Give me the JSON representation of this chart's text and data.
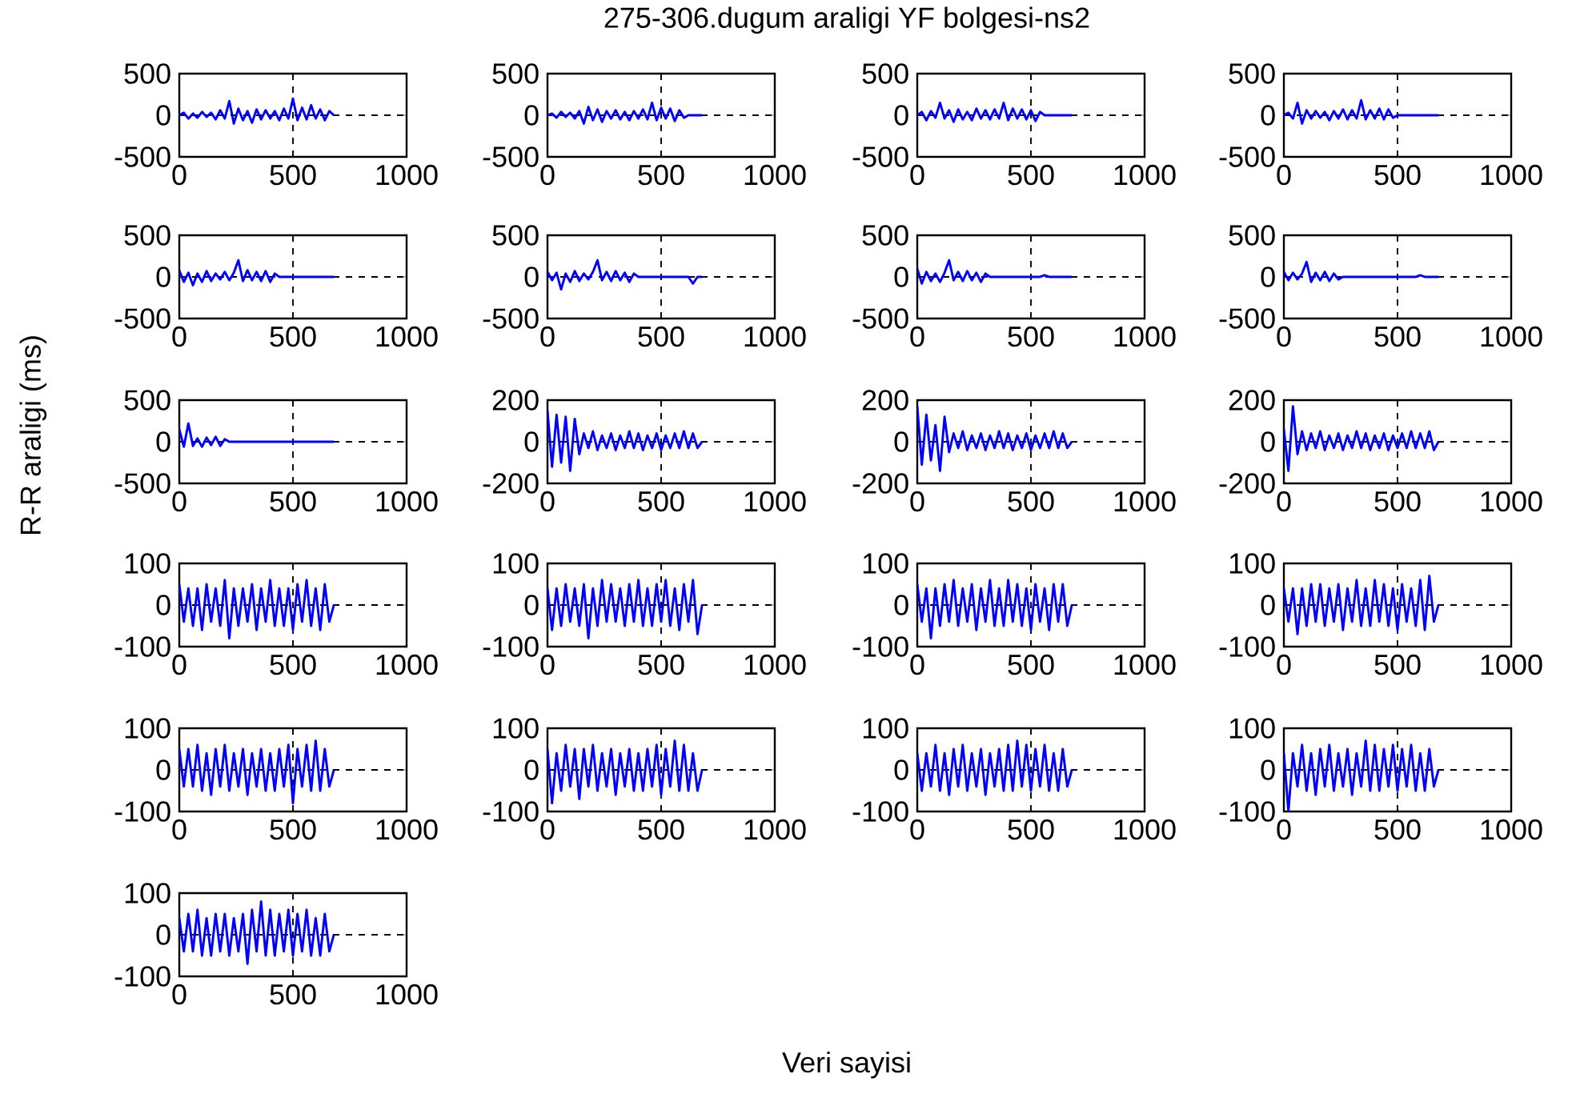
{
  "chart_data": [
    {
      "type": "line",
      "annotations": [
        "275-306.dugum araligi YF bolgesi-ns2",
        "Veri sayisi",
        "R-R araligi (ms)"
      ],
      "color": "#0000ff",
      "grid": true,
      "xlim": [
        0,
        1000
      ],
      "xticks": [
        0,
        500,
        1000
      ],
      "ylim": [
        -500,
        500
      ],
      "yticks": [
        -500,
        0,
        500
      ],
      "x": [
        0,
        20,
        40,
        60,
        80,
        100,
        120,
        140,
        160,
        180,
        200,
        220,
        240,
        260,
        280,
        300,
        320,
        340,
        360,
        380,
        400,
        420,
        440,
        460,
        480,
        500,
        520,
        540,
        560,
        580,
        600,
        620,
        640,
        660,
        680
      ],
      "values": [
        0,
        30,
        -40,
        20,
        -30,
        40,
        -20,
        30,
        -50,
        60,
        -40,
        170,
        -100,
        80,
        -60,
        50,
        -90,
        70,
        -50,
        60,
        -40,
        50,
        -60,
        80,
        -40,
        200,
        -60,
        90,
        -50,
        120,
        -40,
        70,
        -60,
        50,
        0
      ]
    },
    {
      "type": "line",
      "color": "#0000ff",
      "grid": true,
      "xlim": [
        0,
        1000
      ],
      "xticks": [
        0,
        500,
        1000
      ],
      "ylim": [
        -500,
        500
      ],
      "yticks": [
        -500,
        0,
        500
      ],
      "x": [
        0,
        20,
        40,
        60,
        80,
        100,
        120,
        140,
        160,
        180,
        200,
        220,
        240,
        260,
        280,
        300,
        320,
        340,
        360,
        380,
        400,
        420,
        440,
        460,
        480,
        500,
        520,
        540,
        560,
        580,
        600,
        620,
        640,
        660,
        680
      ],
      "values": [
        0,
        20,
        -30,
        40,
        -20,
        30,
        -40,
        50,
        -100,
        100,
        -60,
        70,
        -80,
        50,
        -40,
        60,
        -50,
        40,
        -60,
        50,
        -40,
        70,
        -50,
        150,
        -60,
        90,
        -40,
        80,
        -70,
        60,
        -30,
        0,
        0,
        0,
        0
      ]
    },
    {
      "type": "line",
      "color": "#0000ff",
      "grid": true,
      "xlim": [
        0,
        1000
      ],
      "xticks": [
        0,
        500,
        1000
      ],
      "ylim": [
        -500,
        500
      ],
      "yticks": [
        -500,
        0,
        500
      ],
      "x": [
        0,
        20,
        40,
        60,
        80,
        100,
        120,
        140,
        160,
        180,
        200,
        220,
        240,
        260,
        280,
        300,
        320,
        340,
        360,
        380,
        400,
        420,
        440,
        460,
        480,
        500,
        520,
        540,
        560,
        580,
        600,
        620,
        640,
        660,
        680
      ],
      "values": [
        0,
        40,
        -60,
        50,
        -30,
        150,
        -40,
        60,
        -80,
        70,
        -50,
        40,
        -60,
        80,
        -40,
        60,
        -50,
        70,
        -40,
        150,
        -60,
        80,
        -40,
        70,
        -50,
        60,
        -70,
        40,
        0,
        0,
        0,
        0,
        0,
        0,
        0
      ]
    },
    {
      "type": "line",
      "color": "#0000ff",
      "grid": true,
      "xlim": [
        0,
        1000
      ],
      "xticks": [
        0,
        500,
        1000
      ],
      "ylim": [
        -500,
        500
      ],
      "yticks": [
        -500,
        0,
        500
      ],
      "x": [
        0,
        20,
        40,
        60,
        80,
        100,
        120,
        140,
        160,
        180,
        200,
        220,
        240,
        260,
        280,
        300,
        320,
        340,
        360,
        380,
        400,
        420,
        440,
        460,
        480,
        500,
        520,
        540,
        560,
        580,
        600,
        620,
        640,
        660,
        680
      ],
      "values": [
        0,
        30,
        -40,
        150,
        -100,
        60,
        -40,
        50,
        -30,
        40,
        -60,
        50,
        -40,
        70,
        -50,
        60,
        -40,
        180,
        -50,
        60,
        -40,
        80,
        -50,
        70,
        -30,
        0,
        0,
        0,
        0,
        0,
        0,
        0,
        0,
        0,
        0
      ]
    },
    {
      "type": "line",
      "color": "#0000ff",
      "grid": true,
      "xlim": [
        0,
        1000
      ],
      "xticks": [
        0,
        500,
        1000
      ],
      "ylim": [
        -500,
        500
      ],
      "yticks": [
        -500,
        0,
        500
      ],
      "x": [
        0,
        20,
        40,
        60,
        80,
        100,
        120,
        140,
        160,
        180,
        200,
        220,
        240,
        260,
        280,
        300,
        320,
        340,
        360,
        380,
        400,
        420,
        440,
        460,
        480,
        500,
        520,
        540,
        560,
        580,
        600,
        620,
        640,
        660,
        680
      ],
      "values": [
        80,
        -60,
        50,
        -100,
        40,
        -60,
        70,
        -50,
        40,
        -30,
        60,
        -40,
        50,
        200,
        -50,
        80,
        -40,
        60,
        -50,
        70,
        -60,
        40,
        0,
        0,
        0,
        0,
        0,
        0,
        0,
        0,
        0,
        0,
        0,
        0,
        0
      ]
    },
    {
      "type": "line",
      "color": "#0000ff",
      "grid": true,
      "xlim": [
        0,
        1000
      ],
      "xticks": [
        0,
        500,
        1000
      ],
      "ylim": [
        -500,
        500
      ],
      "yticks": [
        -500,
        0,
        500
      ],
      "x": [
        0,
        20,
        40,
        60,
        80,
        100,
        120,
        140,
        160,
        180,
        200,
        220,
        240,
        260,
        280,
        300,
        320,
        340,
        360,
        380,
        400,
        420,
        440,
        460,
        480,
        500,
        520,
        540,
        560,
        580,
        600,
        620,
        640,
        660,
        680
      ],
      "values": [
        60,
        -40,
        50,
        -150,
        40,
        -60,
        70,
        -50,
        40,
        -30,
        60,
        200,
        -40,
        60,
        -50,
        70,
        -40,
        50,
        -60,
        40,
        0,
        0,
        0,
        0,
        0,
        0,
        0,
        0,
        0,
        0,
        0,
        0,
        -80,
        0,
        0
      ]
    },
    {
      "type": "line",
      "color": "#0000ff",
      "grid": true,
      "xlim": [
        0,
        1000
      ],
      "xticks": [
        0,
        500,
        1000
      ],
      "ylim": [
        -500,
        500
      ],
      "yticks": [
        -500,
        0,
        500
      ],
      "x": [
        0,
        20,
        40,
        60,
        80,
        100,
        120,
        140,
        160,
        180,
        200,
        220,
        240,
        260,
        280,
        300,
        320,
        340,
        360,
        380,
        400,
        420,
        440,
        460,
        480,
        500,
        520,
        540,
        560,
        580,
        600,
        620,
        640,
        660,
        680
      ],
      "values": [
        100,
        -80,
        60,
        -50,
        40,
        -60,
        50,
        200,
        -40,
        60,
        -50,
        70,
        -40,
        50,
        -60,
        40,
        0,
        0,
        0,
        0,
        0,
        0,
        0,
        0,
        0,
        0,
        0,
        0,
        20,
        0,
        0,
        0,
        0,
        0,
        0
      ]
    },
    {
      "type": "line",
      "color": "#0000ff",
      "grid": true,
      "xlim": [
        0,
        1000
      ],
      "xticks": [
        0,
        500,
        1000
      ],
      "ylim": [
        -500,
        500
      ],
      "yticks": [
        -500,
        0,
        500
      ],
      "x": [
        0,
        20,
        40,
        60,
        80,
        100,
        120,
        140,
        160,
        180,
        200,
        220,
        240,
        260,
        280,
        300,
        320,
        340,
        360,
        380,
        400,
        420,
        440,
        460,
        480,
        500,
        520,
        540,
        560,
        580,
        600,
        620,
        640,
        660,
        680
      ],
      "values": [
        60,
        -40,
        50,
        -30,
        40,
        180,
        -60,
        50,
        -40,
        60,
        -50,
        40,
        -30,
        0,
        0,
        0,
        0,
        0,
        0,
        0,
        0,
        0,
        0,
        0,
        0,
        0,
        0,
        0,
        0,
        0,
        20,
        0,
        0,
        0,
        0
      ]
    },
    {
      "type": "line",
      "color": "#0000ff",
      "grid": true,
      "xlim": [
        0,
        1000
      ],
      "xticks": [
        0,
        500,
        1000
      ],
      "ylim": [
        -500,
        500
      ],
      "yticks": [
        -500,
        0,
        500
      ],
      "x": [
        0,
        20,
        40,
        60,
        80,
        100,
        120,
        140,
        160,
        180,
        200,
        220,
        240,
        260,
        280,
        300,
        320,
        340,
        360,
        380,
        400,
        420,
        440,
        460,
        480,
        500,
        520,
        540,
        560,
        580,
        600,
        620,
        640,
        660,
        680
      ],
      "values": [
        150,
        -60,
        220,
        -50,
        40,
        -60,
        50,
        -40,
        60,
        -50,
        30,
        0,
        0,
        0,
        0,
        0,
        0,
        0,
        0,
        0,
        0,
        0,
        0,
        0,
        0,
        0,
        0,
        0,
        0,
        0,
        0,
        0,
        0,
        0,
        0
      ]
    },
    {
      "type": "line",
      "color": "#0000ff",
      "grid": true,
      "xlim": [
        0,
        1000
      ],
      "xticks": [
        0,
        500,
        1000
      ],
      "ylim": [
        -200,
        200
      ],
      "yticks": [
        -200,
        0,
        200
      ],
      "x": [
        0,
        20,
        40,
        60,
        80,
        100,
        120,
        140,
        160,
        180,
        200,
        220,
        240,
        260,
        280,
        300,
        320,
        340,
        360,
        380,
        400,
        420,
        440,
        460,
        480,
        500,
        520,
        540,
        560,
        580,
        600,
        620,
        640,
        660,
        680
      ],
      "values": [
        150,
        -120,
        130,
        -100,
        120,
        -140,
        110,
        -60,
        40,
        -30,
        50,
        -40,
        30,
        -30,
        40,
        -40,
        30,
        -30,
        50,
        -30,
        40,
        -40,
        30,
        -30,
        40,
        -40,
        30,
        -30,
        40,
        -30,
        50,
        -30,
        40,
        -30,
        0
      ]
    },
    {
      "type": "line",
      "color": "#0000ff",
      "grid": true,
      "xlim": [
        0,
        1000
      ],
      "xticks": [
        0,
        500,
        1000
      ],
      "ylim": [
        -200,
        200
      ],
      "yticks": [
        -200,
        0,
        200
      ],
      "x": [
        0,
        20,
        40,
        60,
        80,
        100,
        120,
        140,
        160,
        180,
        200,
        220,
        240,
        260,
        280,
        300,
        320,
        340,
        360,
        380,
        400,
        420,
        440,
        460,
        480,
        500,
        520,
        540,
        560,
        580,
        600,
        620,
        640,
        660,
        680
      ],
      "values": [
        170,
        -110,
        130,
        -90,
        80,
        -140,
        120,
        -50,
        40,
        -30,
        50,
        -40,
        30,
        -30,
        40,
        -40,
        30,
        -30,
        50,
        -30,
        40,
        -40,
        30,
        -30,
        40,
        -40,
        30,
        -30,
        40,
        -30,
        50,
        -30,
        40,
        -30,
        0
      ]
    },
    {
      "type": "line",
      "color": "#0000ff",
      "grid": true,
      "xlim": [
        0,
        1000
      ],
      "xticks": [
        0,
        500,
        1000
      ],
      "ylim": [
        -200,
        200
      ],
      "yticks": [
        -200,
        0,
        200
      ],
      "x": [
        0,
        20,
        40,
        60,
        80,
        100,
        120,
        140,
        160,
        180,
        200,
        220,
        240,
        260,
        280,
        300,
        320,
        340,
        360,
        380,
        400,
        420,
        440,
        460,
        480,
        500,
        520,
        540,
        560,
        580,
        600,
        620,
        640,
        660,
        680
      ],
      "values": [
        60,
        -140,
        170,
        -60,
        50,
        -40,
        40,
        -30,
        50,
        -40,
        30,
        -30,
        40,
        -40,
        30,
        -30,
        50,
        -30,
        40,
        -40,
        30,
        -30,
        40,
        -40,
        30,
        -30,
        40,
        -30,
        50,
        -30,
        40,
        -30,
        50,
        -40,
        0
      ]
    },
    {
      "type": "line",
      "color": "#0000ff",
      "grid": true,
      "xlim": [
        0,
        1000
      ],
      "xticks": [
        0,
        500,
        1000
      ],
      "ylim": [
        -100,
        100
      ],
      "yticks": [
        -100,
        0,
        100
      ],
      "x": [
        0,
        20,
        40,
        60,
        80,
        100,
        120,
        140,
        160,
        180,
        200,
        220,
        240,
        260,
        280,
        300,
        320,
        340,
        360,
        380,
        400,
        420,
        440,
        460,
        480,
        500,
        520,
        540,
        560,
        580,
        600,
        620,
        640,
        660,
        680
      ],
      "values": [
        50,
        -40,
        40,
        -50,
        40,
        -60,
        50,
        -40,
        40,
        -50,
        60,
        -80,
        40,
        -50,
        40,
        -40,
        50,
        -60,
        40,
        -40,
        60,
        -50,
        40,
        -50,
        40,
        -60,
        50,
        -40,
        60,
        -50,
        40,
        -60,
        50,
        -40,
        0
      ]
    },
    {
      "type": "line",
      "color": "#0000ff",
      "grid": true,
      "xlim": [
        0,
        1000
      ],
      "xticks": [
        0,
        500,
        1000
      ],
      "ylim": [
        -100,
        100
      ],
      "yticks": [
        -100,
        0,
        100
      ],
      "x": [
        0,
        20,
        40,
        60,
        80,
        100,
        120,
        140,
        160,
        180,
        200,
        220,
        240,
        260,
        280,
        300,
        320,
        340,
        360,
        380,
        400,
        420,
        440,
        460,
        480,
        500,
        520,
        540,
        560,
        580,
        600,
        620,
        640,
        660,
        680
      ],
      "values": [
        40,
        -60,
        40,
        -50,
        50,
        -40,
        40,
        -50,
        50,
        -80,
        40,
        -50,
        60,
        -40,
        50,
        -40,
        40,
        -50,
        50,
        -40,
        60,
        -50,
        40,
        -50,
        50,
        -40,
        60,
        -50,
        40,
        -60,
        50,
        -40,
        60,
        -70,
        0
      ]
    },
    {
      "type": "line",
      "color": "#0000ff",
      "grid": true,
      "xlim": [
        0,
        1000
      ],
      "xticks": [
        0,
        500,
        1000
      ],
      "ylim": [
        -100,
        100
      ],
      "yticks": [
        -100,
        0,
        100
      ],
      "x": [
        0,
        20,
        40,
        60,
        80,
        100,
        120,
        140,
        160,
        180,
        200,
        220,
        240,
        260,
        280,
        300,
        320,
        340,
        360,
        380,
        400,
        420,
        440,
        460,
        480,
        500,
        520,
        540,
        560,
        580,
        600,
        620,
        640,
        660,
        680
      ],
      "values": [
        50,
        -40,
        40,
        -80,
        40,
        -50,
        50,
        -40,
        60,
        -50,
        40,
        -40,
        50,
        -60,
        40,
        -40,
        60,
        -50,
        40,
        -50,
        60,
        -40,
        50,
        -50,
        40,
        -60,
        50,
        -40,
        40,
        -60,
        50,
        -40,
        50,
        -50,
        0
      ]
    },
    {
      "type": "line",
      "color": "#0000ff",
      "grid": true,
      "xlim": [
        0,
        1000
      ],
      "xticks": [
        0,
        500,
        1000
      ],
      "ylim": [
        -100,
        100
      ],
      "yticks": [
        -100,
        0,
        100
      ],
      "x": [
        0,
        20,
        40,
        60,
        80,
        100,
        120,
        140,
        160,
        180,
        200,
        220,
        240,
        260,
        280,
        300,
        320,
        340,
        360,
        380,
        400,
        420,
        440,
        460,
        480,
        500,
        520,
        540,
        560,
        580,
        600,
        620,
        640,
        660,
        680
      ],
      "values": [
        40,
        -40,
        40,
        -70,
        40,
        -50,
        50,
        -40,
        50,
        -50,
        40,
        -40,
        50,
        -60,
        40,
        -40,
        60,
        -50,
        40,
        -50,
        60,
        -40,
        50,
        -50,
        40,
        -60,
        50,
        -40,
        40,
        -50,
        60,
        -60,
        70,
        -40,
        0
      ]
    },
    {
      "type": "line",
      "color": "#0000ff",
      "grid": true,
      "xlim": [
        0,
        1000
      ],
      "xticks": [
        0,
        500,
        1000
      ],
      "ylim": [
        -100,
        100
      ],
      "yticks": [
        -100,
        0,
        100
      ],
      "x": [
        0,
        20,
        40,
        60,
        80,
        100,
        120,
        140,
        160,
        180,
        200,
        220,
        240,
        260,
        280,
        300,
        320,
        340,
        360,
        380,
        400,
        420,
        440,
        460,
        480,
        500,
        520,
        540,
        560,
        580,
        600,
        620,
        640,
        660,
        680
      ],
      "values": [
        50,
        -40,
        50,
        -40,
        60,
        -50,
        40,
        -60,
        50,
        -40,
        60,
        -50,
        40,
        -40,
        50,
        -60,
        40,
        -40,
        50,
        -50,
        40,
        -50,
        50,
        -40,
        60,
        -80,
        50,
        -40,
        60,
        -50,
        70,
        -50,
        50,
        -40,
        0
      ]
    },
    {
      "type": "line",
      "color": "#0000ff",
      "grid": true,
      "xlim": [
        0,
        1000
      ],
      "xticks": [
        0,
        500,
        1000
      ],
      "ylim": [
        -100,
        100
      ],
      "yticks": [
        -100,
        0,
        100
      ],
      "x": [
        0,
        20,
        40,
        60,
        80,
        100,
        120,
        140,
        160,
        180,
        200,
        220,
        240,
        260,
        280,
        300,
        320,
        340,
        360,
        380,
        400,
        420,
        440,
        460,
        480,
        500,
        520,
        540,
        560,
        580,
        600,
        620,
        640,
        660,
        680
      ],
      "values": [
        50,
        -80,
        40,
        -50,
        60,
        -40,
        50,
        -70,
        50,
        -40,
        60,
        -50,
        40,
        -40,
        50,
        -60,
        40,
        -40,
        50,
        -50,
        40,
        -50,
        50,
        -40,
        60,
        -60,
        50,
        -40,
        70,
        -50,
        60,
        -50,
        40,
        -50,
        0
      ]
    },
    {
      "type": "line",
      "color": "#0000ff",
      "grid": true,
      "xlim": [
        0,
        1000
      ],
      "xticks": [
        0,
        500,
        1000
      ],
      "ylim": [
        -100,
        100
      ],
      "yticks": [
        -100,
        0,
        100
      ],
      "x": [
        0,
        20,
        40,
        60,
        80,
        100,
        120,
        140,
        160,
        180,
        200,
        220,
        240,
        260,
        280,
        300,
        320,
        340,
        360,
        380,
        400,
        420,
        440,
        460,
        480,
        500,
        520,
        540,
        560,
        580,
        600,
        620,
        640,
        660,
        680
      ],
      "values": [
        40,
        -50,
        40,
        -40,
        60,
        -50,
        40,
        -60,
        50,
        -40,
        60,
        -50,
        40,
        -40,
        50,
        -60,
        40,
        -40,
        50,
        -50,
        60,
        -50,
        70,
        -40,
        60,
        -50,
        50,
        -40,
        60,
        -50,
        40,
        -50,
        50,
        -40,
        0
      ]
    },
    {
      "type": "line",
      "color": "#0000ff",
      "grid": true,
      "xlim": [
        0,
        1000
      ],
      "xticks": [
        0,
        500,
        1000
      ],
      "ylim": [
        -100,
        100
      ],
      "yticks": [
        -100,
        0,
        100
      ],
      "x": [
        0,
        20,
        40,
        60,
        80,
        100,
        120,
        140,
        160,
        180,
        200,
        220,
        240,
        260,
        280,
        300,
        320,
        340,
        360,
        380,
        400,
        420,
        440,
        460,
        480,
        500,
        520,
        540,
        560,
        580,
        600,
        620,
        640,
        660,
        680
      ],
      "values": [
        40,
        -100,
        40,
        -40,
        60,
        -50,
        40,
        -60,
        50,
        -40,
        60,
        -50,
        40,
        -40,
        50,
        -60,
        40,
        -40,
        70,
        -50,
        60,
        -50,
        50,
        -40,
        60,
        -50,
        50,
        -40,
        60,
        -50,
        40,
        -50,
        50,
        -40,
        0
      ]
    },
    {
      "type": "line",
      "color": "#0000ff",
      "grid": true,
      "xlim": [
        0,
        1000
      ],
      "xticks": [
        0,
        500,
        1000
      ],
      "ylim": [
        -100,
        100
      ],
      "yticks": [
        -100,
        0,
        100
      ],
      "x": [
        0,
        20,
        40,
        60,
        80,
        100,
        120,
        140,
        160,
        180,
        200,
        220,
        240,
        260,
        280,
        300,
        320,
        340,
        360,
        380,
        400,
        420,
        440,
        460,
        480,
        500,
        520,
        540,
        560,
        580,
        600,
        620,
        640,
        660,
        680
      ],
      "values": [
        40,
        -40,
        50,
        -40,
        60,
        -50,
        40,
        -50,
        50,
        -40,
        50,
        -50,
        40,
        -40,
        50,
        -70,
        60,
        -40,
        80,
        -50,
        60,
        -50,
        50,
        -40,
        60,
        -50,
        50,
        -40,
        60,
        -50,
        40,
        -50,
        50,
        -40,
        0
      ]
    }
  ]
}
